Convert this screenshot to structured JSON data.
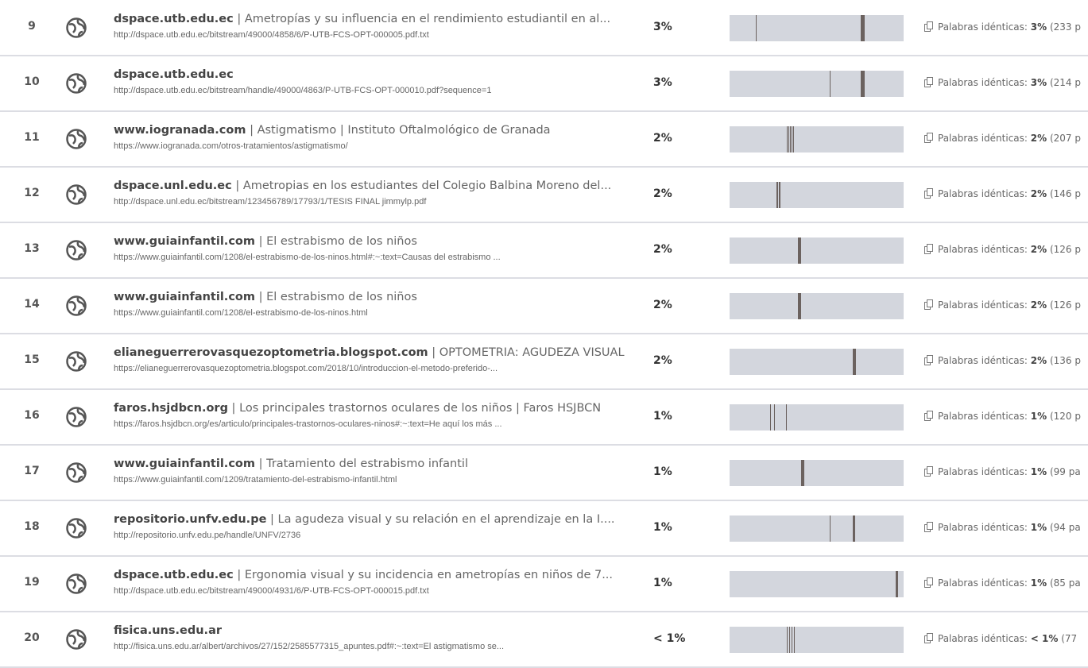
{
  "rows": [
    {
      "number": "9",
      "domain": "dspace.utb.edu.ec",
      "title": "Ametropías y su influencia en el rendimiento estudiantil en al...",
      "url": "http://dspace.utb.edu.ec/bitstream/49000/4858/6/P-UTB-FCS-OPT-000005.pdf.txt",
      "percent": "3%",
      "words_label": "Palabras idénticas:",
      "words_percent": "3%",
      "words_count": "(233 p"
    },
    {
      "number": "10",
      "domain": "dspace.utb.edu.ec",
      "url": "http://dspace.utb.edu.ec/bitstream/handle/49000/4863/P-UTB-FCS-OPT-000010.pdf?sequence=1",
      "percent": "3%",
      "words_label": "Palabras idénticas:",
      "words_percent": "3%",
      "words_count": "(214 p"
    },
    {
      "number": "11",
      "domain": "www.iogranada.com",
      "title": "Astigmatismo | Instituto Oftalmológico de Granada",
      "url": "https://www.iogranada.com/otros-tratamientos/astigmatismo/",
      "percent": "2%",
      "words_label": "Palabras idénticas:",
      "words_percent": "2%",
      "words_count": "(207 p"
    },
    {
      "number": "12",
      "domain": "dspace.unl.edu.ec",
      "title": "Ametropias en los estudiantes del Colegio Balbina Moreno del...",
      "url": "http://dspace.unl.edu.ec/bitstream/123456789/17793/1/TESIS FINAL jimmylp.pdf",
      "percent": "2%",
      "words_label": "Palabras idénticas:",
      "words_percent": "2%",
      "words_count": "(146 p"
    },
    {
      "number": "13",
      "domain": "www.guiainfantil.com",
      "title": "El estrabismo de los niños",
      "url": "https://www.guiainfantil.com/1208/el-estrabismo-de-los-ninos.html#:~:text=Causas del estrabismo ...",
      "percent": "2%",
      "words_label": "Palabras idénticas:",
      "words_percent": "2%",
      "words_count": "(126 p"
    },
    {
      "number": "14",
      "domain": "www.guiainfantil.com",
      "title": "El estrabismo de los niños",
      "url": "https://www.guiainfantil.com/1208/el-estrabismo-de-los-ninos.html",
      "percent": "2%",
      "words_label": "Palabras idénticas:",
      "words_percent": "2%",
      "words_count": "(126 p"
    },
    {
      "number": "15",
      "domain": "elianeguerrerovasquezoptometria.blogspot.com",
      "title": "OPTOMETRIA: AGUDEZA VISUAL",
      "url": "https://elianeguerrerovasquezoptometria.blogspot.com/2018/10/introduccion-el-metodo-preferido-...",
      "percent": "2%",
      "words_label": "Palabras idénticas:",
      "words_percent": "2%",
      "words_count": "(136 p"
    },
    {
      "number": "16",
      "domain": "faros.hsjdbcn.org",
      "title": "Los principales trastornos oculares de los niños | Faros HSJBCN",
      "url": "https://faros.hsjdbcn.org/es/articulo/principales-trastornos-oculares-ninos#:~:text=He aquí los más ...",
      "percent": "1%",
      "words_label": "Palabras idénticas:",
      "words_percent": "1%",
      "words_count": "(120 p"
    },
    {
      "number": "17",
      "domain": "www.guiainfantil.com",
      "title": "Tratamiento del estrabismo infantil",
      "url": "https://www.guiainfantil.com/1209/tratamiento-del-estrabismo-infantil.html",
      "percent": "1%",
      "words_label": "Palabras idénticas:",
      "words_percent": "1%",
      "words_count": "(99 pa"
    },
    {
      "number": "18",
      "domain": "repositorio.unfv.edu.pe",
      "title": "La agudeza visual y su relación en el aprendizaje en la I....",
      "url": "http://repositorio.unfv.edu.pe/handle/UNFV/2736",
      "percent": "1%",
      "words_label": "Palabras idénticas:",
      "words_percent": "1%",
      "words_count": "(94 pa"
    },
    {
      "number": "19",
      "domain": "dspace.utb.edu.ec",
      "title": "Ergonomia visual y su incidencia en ametropías en niños de 7...",
      "url": "http://dspace.utb.edu.ec/bitstream/49000/4931/6/P-UTB-FCS-OPT-000015.pdf.txt",
      "percent": "1%",
      "words_label": "Palabras idénticas:",
      "words_percent": "1%",
      "words_count": "(85 pa"
    },
    {
      "number": "20",
      "domain": "fisica.uns.edu.ar",
      "url": "http://fisica.uns.edu.ar/albert/archivos/27/152/2585577315_apuntes.pdf#:~:text=El astigmatismo se...",
      "percent": "< 1%",
      "words_label": "Palabras idénticas:",
      "words_percent": "< 1%",
      "words_count": "(77"
    }
  ]
}
